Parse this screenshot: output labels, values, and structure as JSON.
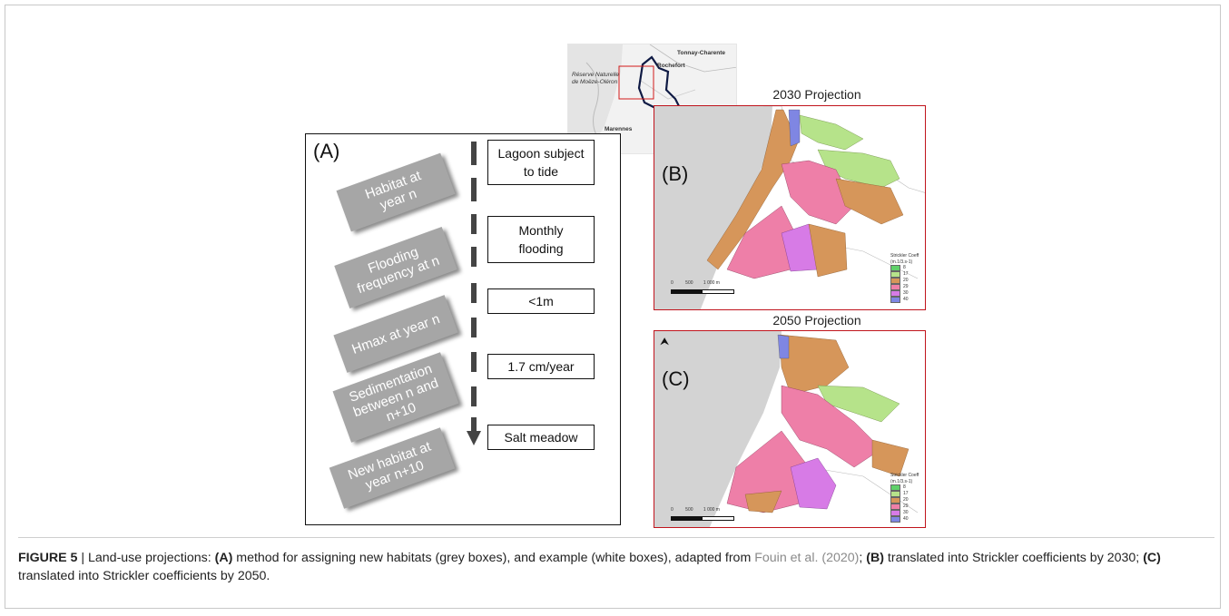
{
  "panelA": {
    "letter": "(A)",
    "grey_boxes": [
      [
        "Habitat at",
        "year n"
      ],
      [
        "Flooding",
        "frequency at n"
      ],
      [
        "Hmax at year n"
      ],
      [
        "Sedimentation",
        "between n and",
        "n+10"
      ],
      [
        "New habitat at",
        "year n+10"
      ]
    ],
    "white_boxes": [
      [
        "Lagoon subject",
        "to tide"
      ],
      [
        "Monthly",
        "flooding"
      ],
      [
        "<1m"
      ],
      [
        "1.7 cm/year"
      ],
      [
        "Salt meadow"
      ]
    ]
  },
  "locator": {
    "labels": [
      "Tonnay-Charente",
      "Rochefort",
      "Réserve Naturelle",
      "de Moëze-Oléron",
      "Marennes"
    ]
  },
  "mapB": {
    "title": "2030 Projection",
    "letter": "(B)",
    "legend_title": [
      "Strickler Coeff",
      "(m.1/3.s-1)"
    ],
    "legend": [
      {
        "label": "8",
        "color": "#5fd06a"
      },
      {
        "label": "17",
        "color": "#b6e38a"
      },
      {
        "label": "20",
        "color": "#d6965a"
      },
      {
        "label": "29",
        "color": "#ee7fa8"
      },
      {
        "label": "30",
        "color": "#d77be6"
      },
      {
        "label": "40",
        "color": "#7f86e3"
      }
    ],
    "scale": [
      "0",
      "500",
      "1 000 m"
    ]
  },
  "mapC": {
    "title": "2050 Projection",
    "letter": "(C)",
    "north": "⮝",
    "legend_title": [
      "Strickler Coeff",
      "(m.1/3.s-1)"
    ],
    "legend": [
      {
        "label": "8",
        "color": "#5fd06a"
      },
      {
        "label": "17",
        "color": "#b6e38a"
      },
      {
        "label": "20",
        "color": "#d6965a"
      },
      {
        "label": "29",
        "color": "#ee7fa8"
      },
      {
        "label": "30",
        "color": "#d77be6"
      },
      {
        "label": "40",
        "color": "#7f86e3"
      }
    ],
    "scale": [
      "0",
      "500",
      "1 000 m"
    ]
  },
  "caption": {
    "fig": "FIGURE 5",
    "sep": " | Land-use projections: ",
    "a": "(A)",
    "t1": " method for assigning new habitats (grey boxes), and example (white boxes), adapted from ",
    "cite": "Fouin et al. (2020)",
    "t2": "; ",
    "b": "(B)",
    "t3": " translated into Strickler coefficients by 2030; ",
    "c": "(C)",
    "t4": " translated into Strickler coefficients by 2050."
  }
}
